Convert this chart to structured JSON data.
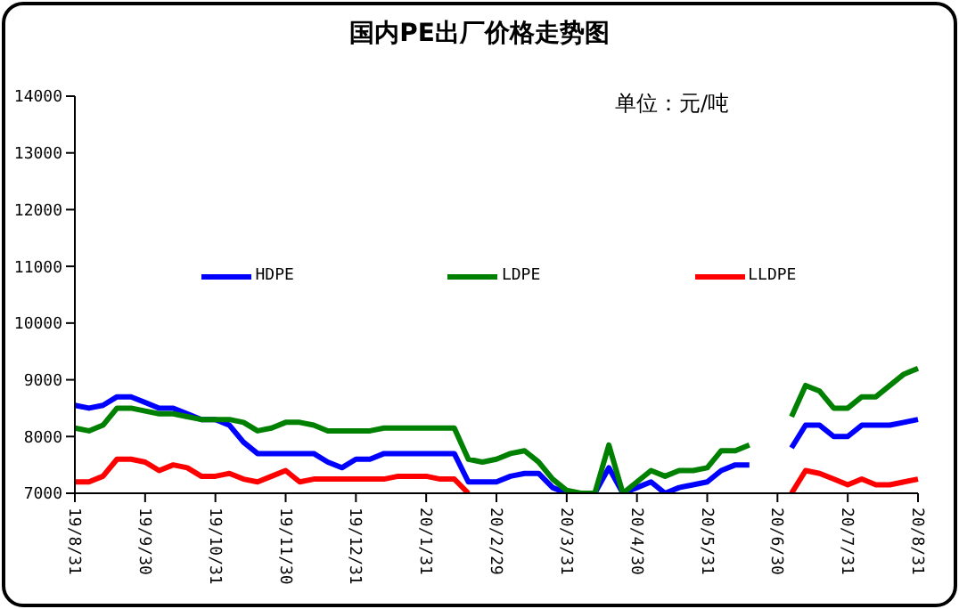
{
  "chart_data": {
    "type": "line",
    "title": "国内PE出厂价格走势图",
    "annotations": [
      "单位：元/吨"
    ],
    "categories": [
      "19/8/31",
      null,
      null,
      null,
      null,
      "19/9/30",
      null,
      null,
      null,
      null,
      "19/10/31",
      null,
      null,
      null,
      null,
      "19/11/30",
      null,
      null,
      null,
      null,
      "19/12/31",
      null,
      null,
      null,
      null,
      "20/1/31",
      null,
      null,
      null,
      null,
      "20/2/29",
      null,
      null,
      null,
      null,
      "20/3/31",
      null,
      null,
      null,
      null,
      "20/4/30",
      null,
      null,
      null,
      null,
      "20/5/31",
      null,
      null,
      null,
      null,
      "20/6/30",
      null,
      null,
      null,
      null,
      "20/7/31",
      null,
      null,
      null,
      null,
      "20/8/31"
    ],
    "series": [
      {
        "name": "HDPE",
        "color": "#0000ff",
        "values": [
          8550,
          8500,
          8550,
          8700,
          8700,
          8600,
          8500,
          8500,
          8400,
          8300,
          8300,
          8200,
          7900,
          7700,
          7700,
          7700,
          7700,
          7700,
          7550,
          7450,
          7600,
          7600,
          7700,
          7700,
          7700,
          7700,
          7700,
          7700,
          7200,
          7200,
          7200,
          7300,
          7350,
          7350,
          7100,
          7000,
          null,
          7000,
          7450,
          7000,
          7100,
          7200,
          7000,
          7100,
          7150,
          7200,
          7400,
          7500,
          7500,
          null,
          null,
          7800,
          8200,
          8200,
          8000,
          8000,
          8200,
          8200,
          8200,
          8250,
          8300
        ]
      },
      {
        "name": "LDPE",
        "color": "#008000",
        "values": [
          8150,
          8100,
          8200,
          8500,
          8500,
          8450,
          8400,
          8400,
          8350,
          8300,
          8300,
          8300,
          8250,
          8100,
          8150,
          8250,
          8250,
          8200,
          8100,
          8100,
          8100,
          8100,
          8150,
          8150,
          8150,
          8150,
          8150,
          8150,
          7600,
          7550,
          7600,
          7700,
          7750,
          7550,
          7250,
          7050,
          7000,
          7000,
          7850,
          7000,
          7200,
          7400,
          7300,
          7400,
          7400,
          7450,
          7750,
          7750,
          7850,
          null,
          null,
          8350,
          8900,
          8800,
          8500,
          8500,
          8700,
          8700,
          8900,
          9100,
          9200
        ]
      },
      {
        "name": "LLDPE",
        "color": "#ff0000",
        "values": [
          7200,
          7200,
          7300,
          7600,
          7600,
          7550,
          7400,
          7500,
          7450,
          7300,
          7300,
          7350,
          7250,
          7200,
          7300,
          7400,
          7200,
          7250,
          7250,
          7250,
          7250,
          7250,
          7250,
          7300,
          7300,
          7300,
          7250,
          7250,
          7000,
          null,
          null,
          null,
          null,
          null,
          null,
          null,
          null,
          null,
          null,
          null,
          null,
          null,
          null,
          null,
          null,
          null,
          null,
          null,
          null,
          null,
          null,
          7000,
          7400,
          7350,
          7250,
          7150,
          7250,
          7150,
          7150,
          7200,
          7250
        ]
      }
    ],
    "ylim": [
      7000,
      14000
    ],
    "yticks": [
      7000,
      8000,
      9000,
      10000,
      11000,
      12000,
      13000,
      14000
    ],
    "legend": "top",
    "marker": "none",
    "line_style": "solid"
  }
}
